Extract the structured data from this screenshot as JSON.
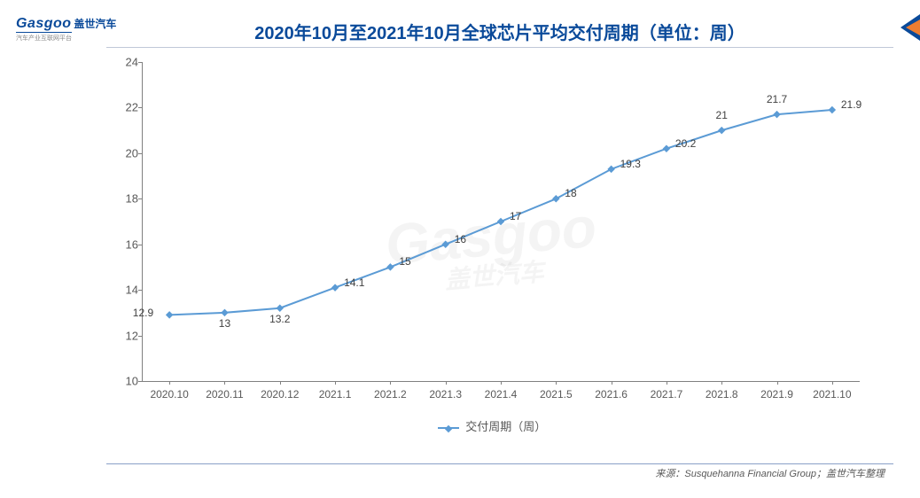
{
  "logo": {
    "main": "Gasgoo",
    "cn": "盖世汽车",
    "sub": "汽车产业互联网平台"
  },
  "title": "2020年10月至2021年10月全球芯片平均交付周期（单位：周）",
  "chart": {
    "type": "line",
    "series_name": "交付周期（周）",
    "line_color": "#5b9bd5",
    "marker_style": "diamond",
    "marker_size": 6,
    "line_width": 2,
    "background_color": "#ffffff",
    "axis_color": "#808080",
    "label_color": "#595959",
    "label_fontsize": 12,
    "ylim": [
      10,
      24
    ],
    "ytick_step": 2,
    "yticks": [
      10,
      12,
      14,
      16,
      18,
      20,
      22,
      24
    ],
    "categories": [
      "2020.10",
      "2020.11",
      "2020.12",
      "2021.1",
      "2021.2",
      "2021.3",
      "2021.4",
      "2021.5",
      "2021.6",
      "2021.7",
      "2021.8",
      "2021.9",
      "2021.10"
    ],
    "values": [
      12.9,
      13,
      13.2,
      14.1,
      15,
      16,
      17,
      18,
      19.3,
      20.2,
      21,
      21.7,
      21.9
    ],
    "data_label_positions": [
      "left",
      "below",
      "below",
      "right",
      "right",
      "right",
      "right",
      "right",
      "right",
      "right",
      "above",
      "above",
      "right"
    ]
  },
  "source": "来源：Susquehanna Financial Group；盖世汽车整理",
  "watermark": {
    "main": "Gasgoo",
    "sub": "盖世汽车"
  },
  "corner_arrow_colors": {
    "back": "#0a4a9a",
    "front": "#ed7d31"
  }
}
